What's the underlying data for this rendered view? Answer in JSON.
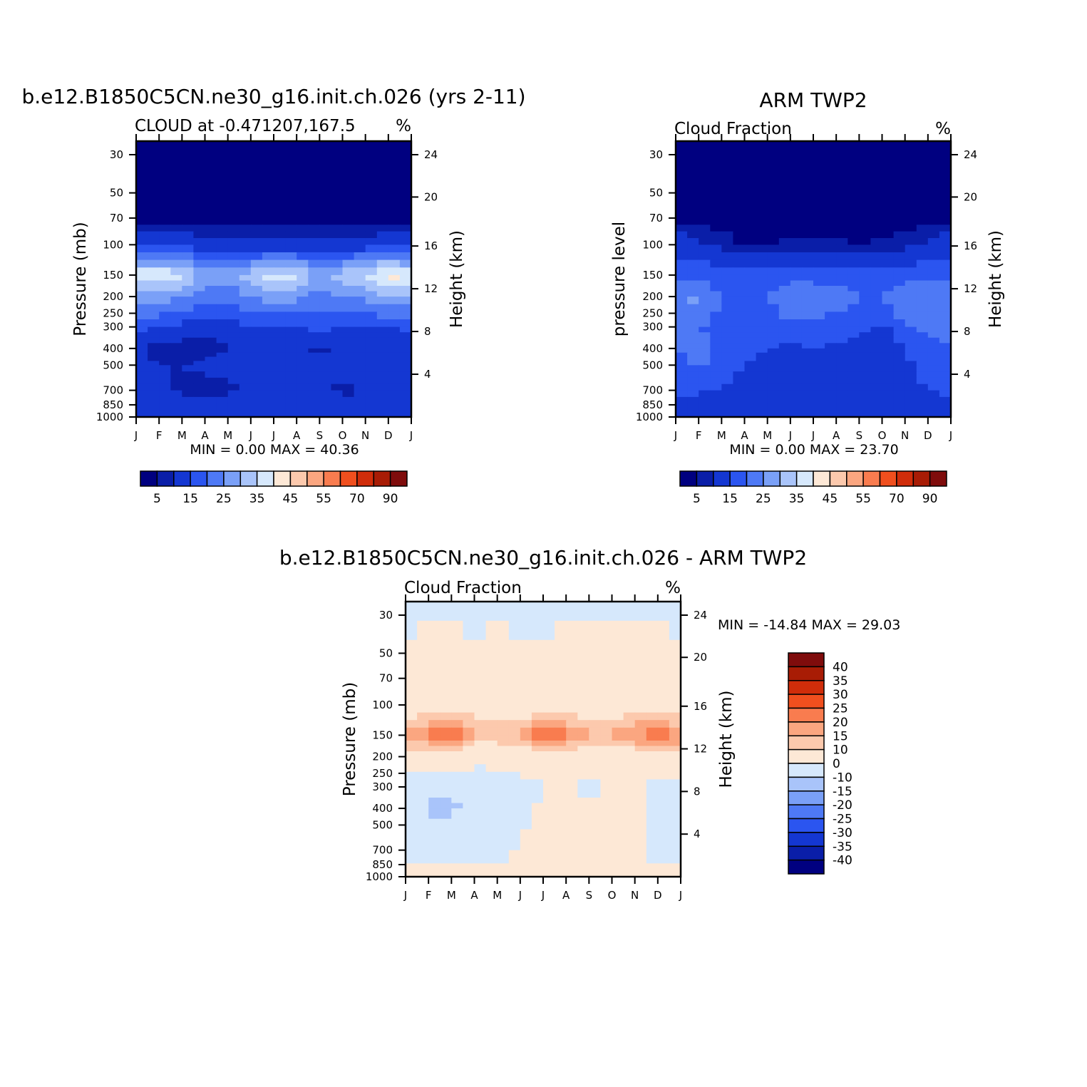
{
  "figure": {
    "colors": [
      "#000080",
      "#0a1ea8",
      "#1437d2",
      "#2b55f0",
      "#4e79f5",
      "#7aa0f7",
      "#a9c4fa",
      "#d6e8fc",
      "#fde8d6",
      "#fcc9ad",
      "#fba680",
      "#f97c4f",
      "#f04f1e",
      "#d02d0a",
      "#a81c05",
      "#7f0c0c"
    ]
  },
  "chart_data": [
    {
      "type": "heatmap",
      "title": "b.e12.B1850C5CN.ne30_g16.init.ch.026 (yrs 2-11)",
      "subtitle_left": "CLOUD at -0.471207,167.5",
      "subtitle_right": "%",
      "ylabel": "Pressure (mb)",
      "ylabel_right": "Height (km)",
      "x_ticks": [
        "J",
        "F",
        "M",
        "A",
        "M",
        "J",
        "J",
        "A",
        "S",
        "O",
        "N",
        "D",
        "J"
      ],
      "y_ticks": [
        30,
        50,
        70,
        100,
        150,
        200,
        250,
        300,
        400,
        500,
        700,
        850,
        1000
      ],
      "y_right_ticks": [
        24,
        20,
        16,
        12,
        8,
        4
      ],
      "stats": "MIN =     0.00  MAX =    40.36",
      "colorbar_labels": [
        "5",
        "15",
        "25",
        "35",
        "45",
        "55",
        "70",
        "90"
      ],
      "value_range": [
        0,
        40.36
      ],
      "levels": [
        {
          "p": 30,
          "band": 0,
          "values": [
            1,
            1,
            1,
            1,
            1,
            1,
            1,
            1,
            1,
            1,
            1,
            1,
            1
          ]
        },
        {
          "p": 70,
          "band": 0,
          "values": [
            1,
            1,
            1,
            1,
            1,
            1,
            1,
            1,
            1,
            1,
            1,
            1,
            1
          ]
        },
        {
          "p": 100,
          "band": 1,
          "values": [
            10,
            9,
            8,
            7,
            6,
            6,
            6,
            6,
            6,
            6,
            7,
            8,
            10
          ]
        },
        {
          "p": 150,
          "band": 2,
          "values": [
            33,
            34,
            31,
            24,
            22,
            28,
            33,
            31,
            23,
            28,
            30,
            38,
            33
          ]
        },
        {
          "p": 200,
          "band": 3,
          "values": [
            24,
            23,
            21,
            18,
            17,
            20,
            23,
            22,
            18,
            20,
            22,
            25,
            24
          ]
        },
        {
          "p": 300,
          "band": 4,
          "values": [
            11,
            10,
            8,
            7,
            8,
            9,
            10,
            10,
            12,
            10,
            9,
            10,
            11
          ]
        },
        {
          "p": 400,
          "band": 5,
          "values": [
            6,
            3,
            3,
            3,
            5,
            6,
            7,
            6,
            4,
            7,
            7,
            7,
            6
          ]
        },
        {
          "p": 500,
          "band": 6,
          "values": [
            7,
            5,
            5,
            6,
            7,
            9,
            10,
            8,
            6,
            7,
            7,
            7,
            7
          ]
        },
        {
          "p": 700,
          "band": 7,
          "values": [
            7,
            6,
            4,
            3,
            4,
            6,
            8,
            7,
            6,
            4,
            5,
            7,
            7
          ]
        },
        {
          "p": 1000,
          "band": 8,
          "values": [
            10,
            10,
            10,
            10,
            10,
            10,
            10,
            10,
            10,
            10,
            10,
            10,
            10
          ]
        }
      ]
    },
    {
      "type": "heatmap",
      "title": "ARM TWP2",
      "subtitle_left": "Cloud Fraction",
      "subtitle_right": "%",
      "ylabel": "pressure level",
      "ylabel_right": "Height (km)",
      "x_ticks": [
        "J",
        "F",
        "M",
        "A",
        "M",
        "J",
        "J",
        "A",
        "S",
        "O",
        "N",
        "D",
        "J"
      ],
      "y_ticks": [
        30,
        50,
        70,
        100,
        150,
        200,
        250,
        300,
        400,
        500,
        700,
        850,
        1000
      ],
      "y_right_ticks": [
        24,
        20,
        16,
        12,
        8,
        4
      ],
      "stats": "MIN =     0.00  MAX =    23.70",
      "colorbar_labels": [
        "5",
        "15",
        "25",
        "35",
        "45",
        "55",
        "70",
        "90"
      ],
      "value_range": [
        0,
        23.7
      ],
      "levels": [
        {
          "p": 30,
          "band": 0,
          "values": [
            1,
            1,
            1,
            1,
            1,
            1,
            1,
            1,
            1,
            1,
            1,
            1,
            1
          ]
        },
        {
          "p": 70,
          "band": 0,
          "values": [
            1,
            1,
            1,
            1,
            1,
            1,
            1,
            1,
            1,
            1,
            1,
            1,
            1
          ]
        },
        {
          "p": 100,
          "band": 1,
          "values": [
            8,
            6,
            4,
            2,
            2,
            3,
            3,
            3,
            2,
            3,
            4,
            6,
            8
          ]
        },
        {
          "p": 150,
          "band": 2,
          "values": [
            14,
            13,
            12,
            12,
            11,
            13,
            12,
            13,
            11,
            12,
            12,
            13,
            14
          ]
        },
        {
          "p": 200,
          "band": 3,
          "values": [
            20,
            21,
            14,
            13,
            15,
            19,
            20,
            17,
            15,
            15,
            20,
            19,
            20
          ]
        },
        {
          "p": 300,
          "band": 4,
          "values": [
            16,
            15,
            14,
            14,
            13,
            14,
            14,
            13,
            11,
            9,
            14,
            16,
            16
          ]
        },
        {
          "p": 400,
          "band": 5,
          "values": [
            15,
            16,
            14,
            12,
            10,
            9,
            10,
            9,
            7,
            6,
            10,
            14,
            15
          ]
        },
        {
          "p": 500,
          "band": 6,
          "values": [
            14,
            16,
            14,
            10,
            8,
            8,
            9,
            8,
            6,
            5,
            9,
            12,
            14
          ]
        },
        {
          "p": 700,
          "band": 7,
          "values": [
            11,
            11,
            9,
            8,
            7,
            8,
            9,
            8,
            6,
            5,
            9,
            10,
            11
          ]
        },
        {
          "p": 1000,
          "band": 8,
          "values": [
            5,
            5,
            5,
            5,
            5,
            5,
            5,
            5,
            5,
            5,
            5,
            5,
            5
          ]
        }
      ]
    },
    {
      "type": "heatmap",
      "title": "b.e12.B1850C5CN.ne30_g16.init.ch.026 - ARM TWP2",
      "subtitle_left": "Cloud Fraction",
      "subtitle_right": "%",
      "ylabel": "Pressure (mb)",
      "ylabel_right": "Height (km)",
      "x_ticks": [
        "J",
        "F",
        "M",
        "A",
        "M",
        "J",
        "J",
        "A",
        "S",
        "O",
        "N",
        "D",
        "J"
      ],
      "y_ticks": [
        30,
        50,
        70,
        100,
        150,
        200,
        250,
        300,
        400,
        500,
        700,
        850,
        1000
      ],
      "y_right_ticks": [
        24,
        20,
        16,
        12,
        8,
        4
      ],
      "stats": "MIN = -14.84  MAX =    29.03",
      "colorbar_labels": [
        "40",
        "35",
        "30",
        "25",
        "20",
        "15",
        "10",
        "0",
        "-10",
        "-15",
        "-20",
        "-25",
        "-30",
        "-35",
        "-40"
      ],
      "value_range": [
        -14.84,
        29.03
      ],
      "levels": [
        {
          "p": 30,
          "band": 0,
          "values": [
            -1,
            -1,
            -1,
            -1,
            -1,
            -1,
            -1,
            -1,
            -1,
            -1,
            -1,
            -1,
            -1
          ]
        },
        {
          "p": 70,
          "band": 1,
          "values": [
            1,
            2,
            2,
            1,
            2,
            1,
            1,
            2,
            2,
            2,
            2,
            2,
            1
          ]
        },
        {
          "p": 100,
          "band": 2,
          "values": [
            4,
            5,
            6,
            6,
            5,
            4,
            4,
            5,
            5,
            5,
            5,
            5,
            4
          ]
        },
        {
          "p": 150,
          "band": 3,
          "values": [
            19,
            21,
            29,
            13,
            14,
            15,
            28,
            22,
            15,
            16,
            20,
            27,
            19
          ]
        },
        {
          "p": 200,
          "band": 4,
          "values": [
            5,
            6,
            7,
            5,
            3,
            3,
            4,
            5,
            4,
            5,
            4,
            6,
            5
          ]
        },
        {
          "p": 300,
          "band": 5,
          "values": [
            -3,
            -8,
            -9,
            -9,
            -4,
            -2,
            -1,
            3,
            -3,
            1,
            2,
            -2,
            -3
          ]
        },
        {
          "p": 400,
          "band": 6,
          "values": [
            -4,
            -12,
            -11,
            -8,
            -4,
            -2,
            1,
            2,
            2,
            3,
            1,
            -3,
            -4
          ]
        },
        {
          "p": 700,
          "band": 7,
          "values": [
            -2,
            -3,
            -3,
            -3,
            -2,
            1,
            3,
            4,
            3,
            4,
            1,
            -2,
            -2
          ]
        },
        {
          "p": 1000,
          "band": 8,
          "values": [
            2,
            2,
            2,
            2,
            2,
            2,
            2,
            2,
            2,
            2,
            2,
            2,
            2
          ]
        }
      ]
    }
  ]
}
